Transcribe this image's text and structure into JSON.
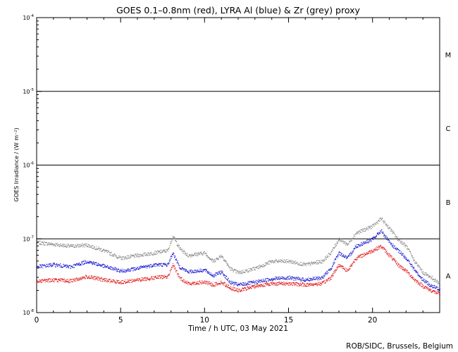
{
  "chart_data": {
    "type": "scatter",
    "title": "GOES 0.1–0.8nm (red), LYRA Al (blue) & Zr (grey) proxy",
    "xlabel": "Time / h UTC, 03 May 2021",
    "ylabel": "GOES Irradiance / (W m⁻²)",
    "credit": "ROB/SIDC, Brussels, Belgium",
    "x_scale": "linear",
    "y_scale": "log",
    "xlim": [
      0,
      24
    ],
    "ylim": [
      1e-08,
      0.0001
    ],
    "x_ticks": [
      {
        "value": 0,
        "label": "0"
      },
      {
        "value": 5,
        "label": "5"
      },
      {
        "value": 10,
        "label": "10"
      },
      {
        "value": 15,
        "label": "15"
      },
      {
        "value": 20,
        "label": "20"
      }
    ],
    "y_ticks": [
      {
        "exp": -8,
        "base": "10",
        "sup": "-8"
      },
      {
        "exp": -7,
        "base": "10",
        "sup": "-7"
      },
      {
        "exp": -6,
        "base": "10",
        "sup": "-6"
      },
      {
        "exp": -5,
        "base": "10",
        "sup": "-5"
      },
      {
        "exp": -4,
        "base": "10",
        "sup": "-4"
      }
    ],
    "flare_class_lines": [
      1e-07,
      1e-06,
      1e-05
    ],
    "flare_classes": [
      {
        "label": "A",
        "exp": -7.5
      },
      {
        "label": "B",
        "exp": -6.5
      },
      {
        "label": "C",
        "exp": -5.5
      },
      {
        "label": "M",
        "exp": -4.5
      }
    ],
    "grid": false,
    "series": [
      {
        "color": "#808080",
        "points": [
          [
            0,
            9e-08
          ],
          [
            1,
            8.5e-08
          ],
          [
            2,
            8e-08
          ],
          [
            3,
            8.3e-08
          ],
          [
            4,
            7e-08
          ],
          [
            5,
            5.5e-08
          ],
          [
            6,
            6e-08
          ],
          [
            7,
            6.5e-08
          ],
          [
            7.8,
            7e-08
          ],
          [
            8.1,
            1.1e-07
          ],
          [
            8.5,
            7.5e-08
          ],
          [
            9,
            6e-08
          ],
          [
            10,
            6.5e-08
          ],
          [
            10.5,
            5e-08
          ],
          [
            11,
            6e-08
          ],
          [
            11.5,
            4e-08
          ],
          [
            12,
            3.5e-08
          ],
          [
            13,
            4e-08
          ],
          [
            14,
            5e-08
          ],
          [
            15,
            5e-08
          ],
          [
            16,
            4.5e-08
          ],
          [
            17,
            5e-08
          ],
          [
            17.5,
            6.5e-08
          ],
          [
            18,
            1e-07
          ],
          [
            18.5,
            8.5e-08
          ],
          [
            19,
            1.2e-07
          ],
          [
            20,
            1.5e-07
          ],
          [
            20.5,
            1.9e-07
          ],
          [
            21,
            1.4e-07
          ],
          [
            21.5,
            1e-07
          ],
          [
            22,
            8e-08
          ],
          [
            22.5,
            5e-08
          ],
          [
            23,
            3.5e-08
          ],
          [
            23.5,
            3e-08
          ],
          [
            24,
            2.5e-08
          ]
        ]
      },
      {
        "color": "#0000cc",
        "points": [
          [
            0,
            4.2e-08
          ],
          [
            1,
            4.5e-08
          ],
          [
            2,
            4.2e-08
          ],
          [
            3,
            5e-08
          ],
          [
            4,
            4.3e-08
          ],
          [
            5,
            3.7e-08
          ],
          [
            6,
            4e-08
          ],
          [
            7,
            4.5e-08
          ],
          [
            7.8,
            4.5e-08
          ],
          [
            8.1,
            6.5e-08
          ],
          [
            8.5,
            4.2e-08
          ],
          [
            9,
            3.6e-08
          ],
          [
            10,
            3.8e-08
          ],
          [
            10.5,
            3.2e-08
          ],
          [
            11,
            3.6e-08
          ],
          [
            11.5,
            2.6e-08
          ],
          [
            12,
            2.4e-08
          ],
          [
            13,
            2.6e-08
          ],
          [
            14,
            2.9e-08
          ],
          [
            15,
            3e-08
          ],
          [
            16,
            2.8e-08
          ],
          [
            17,
            3e-08
          ],
          [
            17.5,
            4e-08
          ],
          [
            18,
            6.5e-08
          ],
          [
            18.5,
            5.5e-08
          ],
          [
            19,
            8e-08
          ],
          [
            20,
            1e-07
          ],
          [
            20.5,
            1.3e-07
          ],
          [
            21,
            9e-08
          ],
          [
            21.5,
            7e-08
          ],
          [
            22,
            5.5e-08
          ],
          [
            22.5,
            3.8e-08
          ],
          [
            23,
            2.8e-08
          ],
          [
            23.5,
            2.3e-08
          ],
          [
            24,
            2.1e-08
          ]
        ]
      },
      {
        "color": "#dd0000",
        "points": [
          [
            0,
            2.7e-08
          ],
          [
            1,
            2.8e-08
          ],
          [
            2,
            2.7e-08
          ],
          [
            3,
            3.1e-08
          ],
          [
            4,
            2.8e-08
          ],
          [
            5,
            2.6e-08
          ],
          [
            6,
            2.8e-08
          ],
          [
            7,
            3e-08
          ],
          [
            7.8,
            3.1e-08
          ],
          [
            8.1,
            4.5e-08
          ],
          [
            8.5,
            3e-08
          ],
          [
            9,
            2.5e-08
          ],
          [
            10,
            2.6e-08
          ],
          [
            10.5,
            2.4e-08
          ],
          [
            11,
            2.6e-08
          ],
          [
            11.5,
            2.2e-08
          ],
          [
            12,
            2e-08
          ],
          [
            13,
            2.3e-08
          ],
          [
            14,
            2.5e-08
          ],
          [
            15,
            2.5e-08
          ],
          [
            16,
            2.4e-08
          ],
          [
            17,
            2.5e-08
          ],
          [
            17.5,
            3e-08
          ],
          [
            18,
            4.5e-08
          ],
          [
            18.5,
            3.7e-08
          ],
          [
            19,
            5.5e-08
          ],
          [
            20,
            7e-08
          ],
          [
            20.5,
            8e-08
          ],
          [
            21,
            6e-08
          ],
          [
            21.5,
            4.5e-08
          ],
          [
            22,
            3.7e-08
          ],
          [
            22.5,
            2.8e-08
          ],
          [
            23,
            2.3e-08
          ],
          [
            23.5,
            2e-08
          ],
          [
            24,
            1.8e-08
          ]
        ]
      }
    ]
  }
}
